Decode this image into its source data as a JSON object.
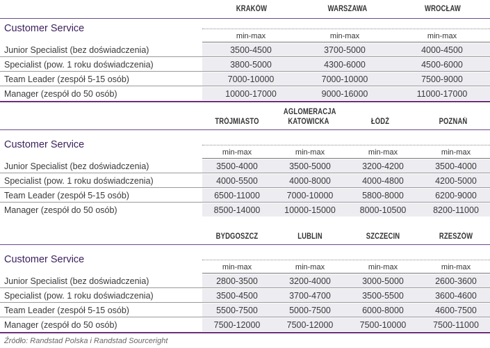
{
  "sections": [
    {
      "cities": [
        "KRAKÓW",
        "WARSZAWA",
        "WROCŁAW"
      ],
      "title": "Customer Service",
      "range_label": "min-max",
      "rows": [
        {
          "label": "Junior Specialist (bez doświadczenia)",
          "values": [
            "3500-4500",
            "3700-5000",
            "4000-4500"
          ]
        },
        {
          "label": "Specialist (pow. 1 roku doświadczenia)",
          "values": [
            "3800-5000",
            "4300-6000",
            "4500-6000"
          ]
        },
        {
          "label": "Team Leader (zespół 5-15 osób)",
          "values": [
            "7000-10000",
            "7000-10000",
            "7500-9000"
          ]
        },
        {
          "label": "Manager (zespół do 50 osób)",
          "values": [
            "10000-17000",
            "9000-16000",
            "11000-17000"
          ]
        }
      ]
    },
    {
      "cities": [
        "TRÓJMIASTO",
        "AGLOMERACJA KATOWICKA",
        "ŁÓDŹ",
        "POZNAŃ"
      ],
      "title": "Customer Service",
      "range_label": "min-max",
      "rows": [
        {
          "label": "Junior Specialist (bez doświadczenia)",
          "values": [
            "3500-4000",
            "3500-5000",
            "3200-4200",
            "3500-4000"
          ]
        },
        {
          "label": "Specialist (pow. 1 roku doświadczenia)",
          "values": [
            "4000-5500",
            "4000-8000",
            "4000-4800",
            "4200-5000"
          ]
        },
        {
          "label": "Team Leader (zespół 5-15 osób)",
          "values": [
            "6500-11000",
            "7000-10000",
            "5800-8000",
            "6200-9000"
          ]
        },
        {
          "label": "Manager (zespół do 50 osób)",
          "values": [
            "8500-14000",
            "10000-15000",
            "8000-10500",
            "8200-11000"
          ]
        }
      ]
    },
    {
      "cities": [
        "BYDGOSZCZ",
        "LUBLIN",
        "SZCZECIN",
        "RZESZÓW"
      ],
      "title": "Customer Service",
      "range_label": "min-max",
      "rows": [
        {
          "label": "Junior Specialist (bez doświadczenia)",
          "values": [
            "2800-3500",
            "3200-4000",
            "3000-5000",
            "2600-3600"
          ]
        },
        {
          "label": "Specialist (pow. 1 roku doświadczenia)",
          "values": [
            "3500-4500",
            "3700-4700",
            "3500-5500",
            "3600-4600"
          ]
        },
        {
          "label": "Team Leader (zespół 5-15 osób)",
          "values": [
            "5500-7500",
            "5000-7500",
            "6000-8000",
            "4600-7500"
          ]
        },
        {
          "label": "Manager (zespół do 50 osób)",
          "values": [
            "7500-12000",
            "7500-12000",
            "7500-10000",
            "7500-11000"
          ]
        }
      ]
    }
  ],
  "source": "Źródło: Randstad Polska i Randstad Sourceright"
}
